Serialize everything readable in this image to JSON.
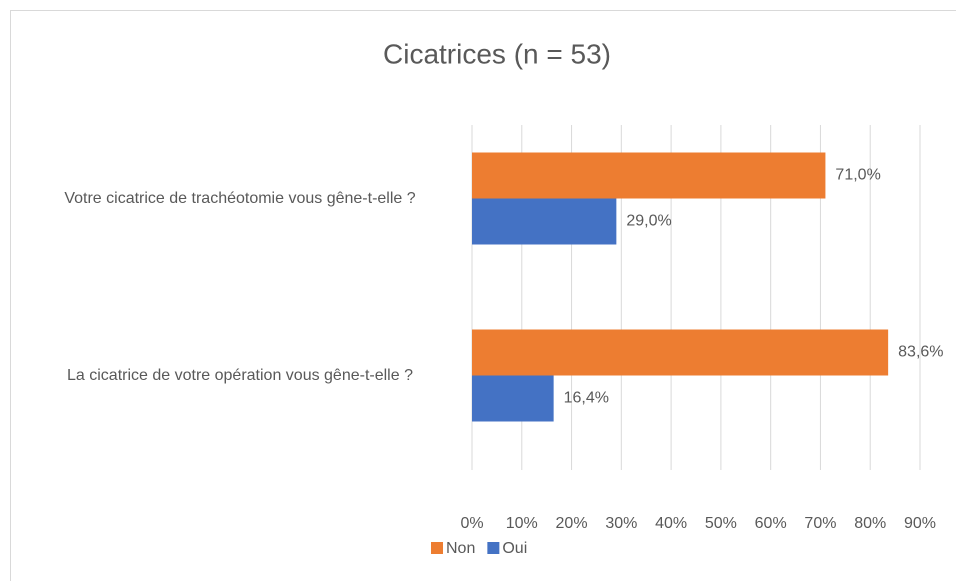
{
  "chart_data": {
    "type": "bar",
    "orientation": "horizontal",
    "title": "Cicatrices (n = 53)",
    "categories": [
      "Votre cicatrice de trachéotomie vous gêne-t-elle ?",
      "La cicatrice de votre opération vous gêne-t-elle ?"
    ],
    "series": [
      {
        "name": "Non",
        "color": "#ed7d31",
        "values": [
          71.0,
          83.6
        ],
        "value_labels": [
          "71,0%",
          "83,6%"
        ]
      },
      {
        "name": "Oui",
        "color": "#4472c4",
        "values": [
          29.0,
          16.4
        ],
        "value_labels": [
          "29,0%",
          "16,4%"
        ]
      }
    ],
    "xlim": [
      0,
      90
    ],
    "xticks": [
      {
        "value": 0,
        "label": "0%"
      },
      {
        "value": 10,
        "label": "10%"
      },
      {
        "value": 20,
        "label": "20%"
      },
      {
        "value": 30,
        "label": "30%"
      },
      {
        "value": 40,
        "label": "40%"
      },
      {
        "value": 50,
        "label": "50%"
      },
      {
        "value": 60,
        "label": "60%"
      },
      {
        "value": 70,
        "label": "70%"
      },
      {
        "value": 80,
        "label": "80%"
      },
      {
        "value": 90,
        "label": "90%"
      }
    ],
    "grid": true,
    "legend": "bottom"
  }
}
